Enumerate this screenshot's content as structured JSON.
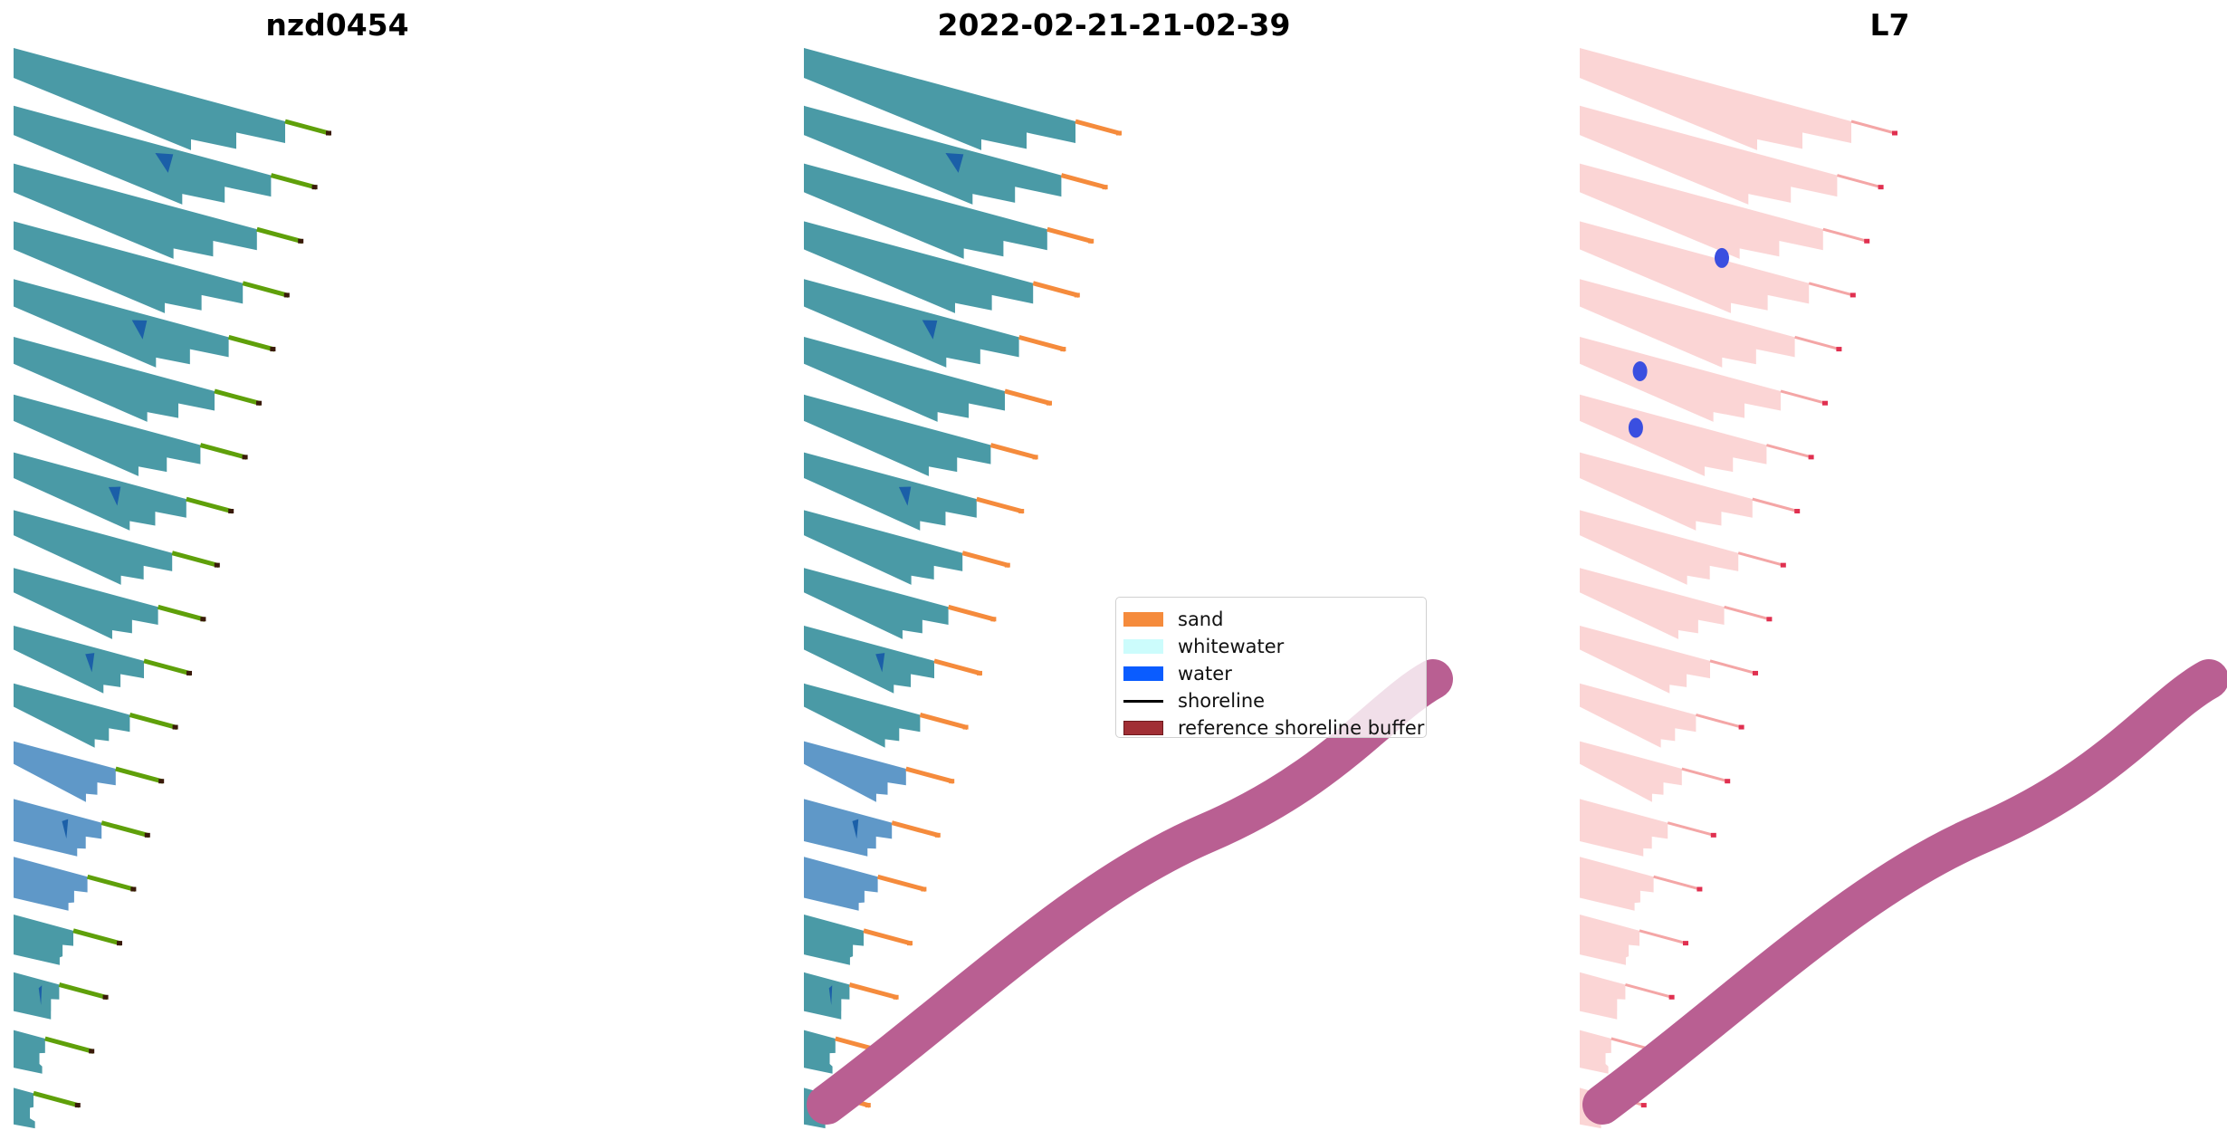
{
  "panels": [
    {
      "title": "nzd0454",
      "style": "rgb",
      "tail_color": "#5fa00a"
    },
    {
      "title": "2022-02-21-21-02-39",
      "style": "classified",
      "tail_color": "#f58b3c"
    },
    {
      "title": "L7",
      "style": "index",
      "tail_color": "#f4a6a6"
    }
  ],
  "legend": {
    "items": [
      {
        "label": "sand",
        "kind": "patch",
        "color": "#f58b3c"
      },
      {
        "label": "whitewater",
        "kind": "patch",
        "color": "#ccfcfc"
      },
      {
        "label": "water",
        "kind": "patch",
        "color": "#0a5cff"
      },
      {
        "label": "shoreline",
        "kind": "line",
        "color": "#000000"
      },
      {
        "label": "reference shoreline buffer",
        "kind": "patch",
        "color": "#a12f35"
      }
    ]
  },
  "colors": {
    "rgb_land": "#4a9aa6",
    "rgb_land_dark": "#3f8e9c",
    "index_land": "#fbd0d0",
    "buffer": "#b95f92",
    "water_patch": "#1450c8"
  },
  "transect_strip_count": 19
}
